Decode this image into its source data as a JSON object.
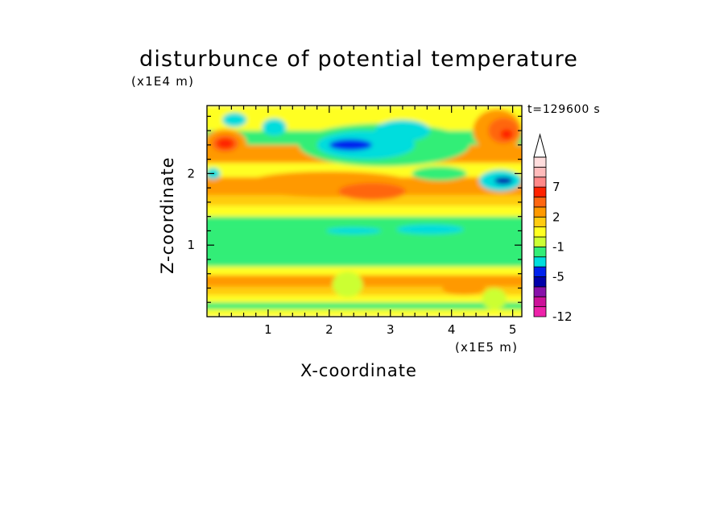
{
  "chart_data": {
    "type": "heatmap",
    "title": "disturbunce of potential temperature",
    "time_label": "t=129600 s",
    "xlabel": "X-coordinate",
    "ylabel": "Z-coordinate",
    "x_unit": "(x1E5 m)",
    "y_unit": "(x1E4 m)",
    "xlim": [
      0,
      5.15
    ],
    "ylim": [
      0,
      2.95
    ],
    "x_ticks": [
      1,
      2,
      3,
      4,
      5
    ],
    "x_tick_labels": [
      "1",
      "2",
      "3",
      "4",
      "5"
    ],
    "y_ticks": [
      1,
      2
    ],
    "y_tick_labels": [
      "1",
      "2"
    ],
    "colorbar": {
      "levels": [
        -12,
        -10,
        -8,
        -6,
        -5,
        -4,
        -3,
        -1,
        0,
        1,
        2,
        3,
        5,
        7,
        8,
        9,
        11
      ],
      "colors": [
        "#ee22aa",
        "#cc1199",
        "#8811aa",
        "#0000aa",
        "#0022ee",
        "#00dddd",
        "#33ee77",
        "#ccff33",
        "#ffff22",
        "#ffcc11",
        "#ff9900",
        "#ff6611",
        "#ff2200",
        "#ff8888",
        "#ffbbbb",
        "#ffdddd"
      ],
      "tick_labels": [
        "-12",
        "-5",
        "-1",
        "2",
        "7"
      ],
      "tick_values": [
        -12,
        -5,
        -1,
        2,
        7
      ],
      "extend": "max"
    },
    "horizontal_bands": [
      {
        "z": [
          0.0,
          0.1
        ],
        "value": 0.5
      },
      {
        "z": [
          0.1,
          0.2
        ],
        "value": -1.5
      },
      {
        "z": [
          0.2,
          0.3
        ],
        "value": 0.5
      },
      {
        "z": [
          0.3,
          0.42
        ],
        "value": 1.5
      },
      {
        "z": [
          0.42,
          0.58
        ],
        "value": 2.2
      },
      {
        "z": [
          0.58,
          0.7
        ],
        "value": 0.5
      },
      {
        "z": [
          0.7,
          0.8
        ],
        "value": -1.5
      },
      {
        "z": [
          0.8,
          1.25
        ],
        "value": -2.0
      },
      {
        "z": [
          1.25,
          1.4
        ],
        "value": -1.5
      },
      {
        "z": [
          1.4,
          1.55
        ],
        "value": 0.5
      },
      {
        "z": [
          1.55,
          1.7
        ],
        "value": 1.5
      },
      {
        "z": [
          1.7,
          1.95
        ],
        "value": 2.5
      },
      {
        "z": [
          1.95,
          2.15
        ],
        "value": 0.5
      },
      {
        "z": [
          2.15,
          2.4
        ],
        "value": 2.5
      },
      {
        "z": [
          2.4,
          2.6
        ],
        "value": -1.5
      },
      {
        "z": [
          2.6,
          2.95
        ],
        "value": 0.5
      }
    ],
    "features": [
      {
        "x": 0.3,
        "z": 2.42,
        "rx": 0.35,
        "rz": 0.2,
        "value": 2.5
      },
      {
        "x": 0.3,
        "z": 2.42,
        "rx": 0.22,
        "rz": 0.12,
        "value": 4.0
      },
      {
        "x": 0.3,
        "z": 2.42,
        "rx": 0.14,
        "rz": 0.07,
        "value": 6.0
      },
      {
        "x": 4.75,
        "z": 2.6,
        "rx": 0.4,
        "rz": 0.3,
        "value": 2.5
      },
      {
        "x": 4.85,
        "z": 2.6,
        "rx": 0.25,
        "rz": 0.18,
        "value": 4.0
      },
      {
        "x": 4.9,
        "z": 2.55,
        "rx": 0.1,
        "rz": 0.07,
        "value": 6.0
      },
      {
        "x": 2.0,
        "z": 1.85,
        "rx": 1.4,
        "rz": 0.18,
        "value": 2.5
      },
      {
        "x": 2.7,
        "z": 1.75,
        "rx": 0.55,
        "rz": 0.12,
        "value": 4.0
      },
      {
        "x": 2.9,
        "z": 2.4,
        "rx": 1.4,
        "rz": 0.3,
        "value": -1.5
      },
      {
        "x": 2.6,
        "z": 2.4,
        "rx": 0.8,
        "rz": 0.2,
        "value": -3.5
      },
      {
        "x": 3.2,
        "z": 2.6,
        "rx": 0.45,
        "rz": 0.15,
        "value": -3.5
      },
      {
        "x": 2.35,
        "z": 2.4,
        "rx": 0.35,
        "rz": 0.08,
        "value": -4.5
      },
      {
        "x": 1.1,
        "z": 2.65,
        "rx": 0.2,
        "rz": 0.12,
        "value": -3.5
      },
      {
        "x": 0.45,
        "z": 2.75,
        "rx": 0.2,
        "rz": 0.1,
        "value": -3.5
      },
      {
        "x": 0.1,
        "z": 2.0,
        "rx": 0.12,
        "rz": 0.08,
        "value": -3.5
      },
      {
        "x": 4.8,
        "z": 1.9,
        "rx": 0.35,
        "rz": 0.15,
        "value": -3.5
      },
      {
        "x": 4.85,
        "z": 1.9,
        "rx": 0.15,
        "rz": 0.05,
        "value": -5.5
      },
      {
        "x": 3.65,
        "z": 1.22,
        "rx": 0.55,
        "rz": 0.07,
        "value": -3.5
      },
      {
        "x": 2.4,
        "z": 1.2,
        "rx": 0.45,
        "rz": 0.05,
        "value": -3.5
      },
      {
        "x": 3.8,
        "z": 2.0,
        "rx": 0.45,
        "rz": 0.1,
        "value": -1.5
      },
      {
        "x": 2.3,
        "z": 0.45,
        "rx": 0.25,
        "rz": 0.18,
        "value": -0.5
      },
      {
        "x": 4.2,
        "z": 0.4,
        "rx": 0.35,
        "rz": 0.1,
        "value": 2.5
      },
      {
        "x": 4.7,
        "z": 0.25,
        "rx": 0.2,
        "rz": 0.15,
        "value": -0.5
      }
    ]
  }
}
